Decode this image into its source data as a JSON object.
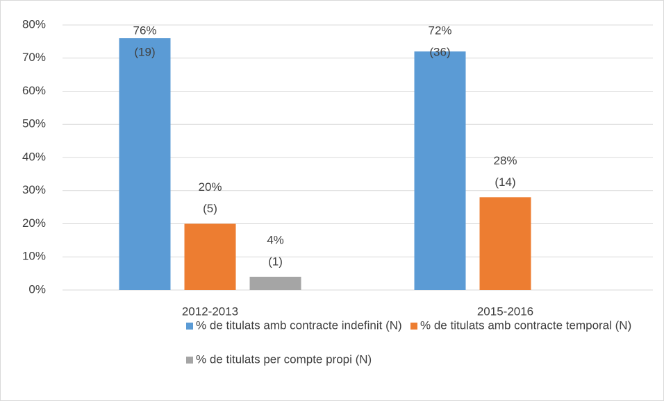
{
  "chart_data": {
    "type": "bar",
    "categories": [
      "2012-2013",
      "2015-2016"
    ],
    "series": [
      {
        "name": "% de titulats amb contracte indefinit (N)",
        "color": "#5b9bd5",
        "values": [
          76,
          72
        ],
        "value_labels": [
          "76%",
          "72%"
        ],
        "count_labels": [
          "(19)",
          "(36)"
        ]
      },
      {
        "name": "% de titulats amb contracte temporal (N)",
        "color": "#ed7d31",
        "values": [
          20,
          28
        ],
        "value_labels": [
          "20%",
          "28%"
        ],
        "count_labels": [
          "(5)",
          "(14)"
        ]
      },
      {
        "name": "% de titulats per compte propi (N)",
        "color": "#a5a5a5",
        "values": [
          4,
          null
        ],
        "value_labels": [
          "4%",
          null
        ],
        "count_labels": [
          "(1)",
          null
        ]
      }
    ],
    "ylim": [
      0,
      80
    ],
    "yticks": [
      {
        "value": 0,
        "label": "0%"
      },
      {
        "value": 10,
        "label": "10%"
      },
      {
        "value": 20,
        "label": "20%"
      },
      {
        "value": 30,
        "label": "30%"
      },
      {
        "value": 40,
        "label": "40%"
      },
      {
        "value": 50,
        "label": "50%"
      },
      {
        "value": 60,
        "label": "60%"
      },
      {
        "value": 70,
        "label": "70%"
      },
      {
        "value": 80,
        "label": "80%"
      }
    ],
    "grid": true
  }
}
